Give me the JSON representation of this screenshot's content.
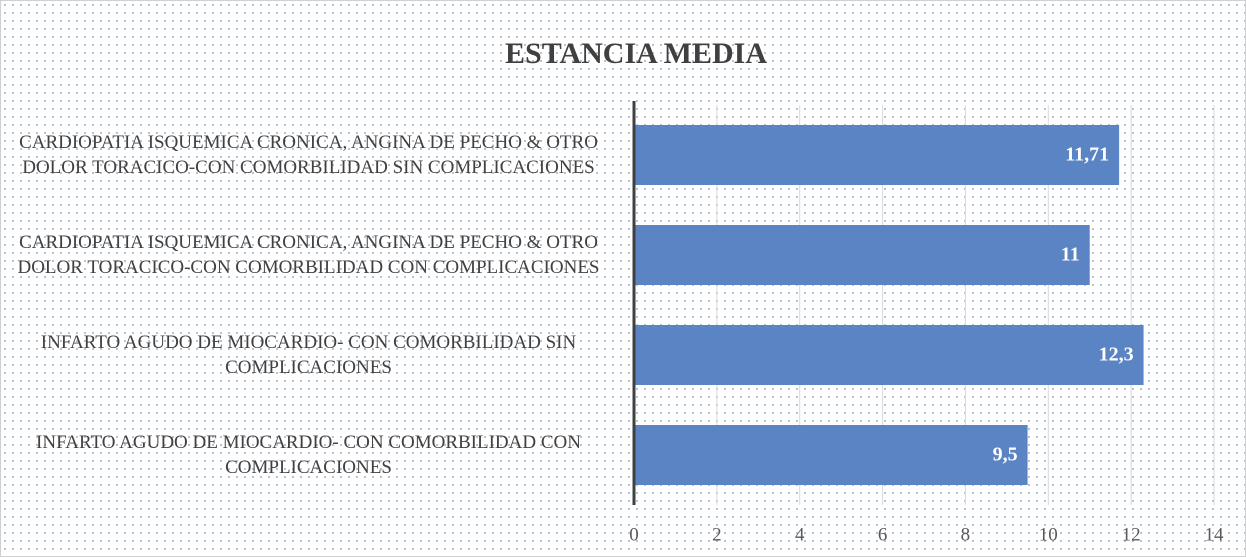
{
  "chart_data": {
    "type": "bar",
    "orientation": "horizontal",
    "title": "ESTANCIA MEDIA",
    "categories": [
      "CARDIOPATIA ISQUEMICA CRONICA, ANGINA DE PECHO & OTRO DOLOR TORACICO-CON COMORBILIDAD SIN COMPLICACIONES",
      "CARDIOPATIA ISQUEMICA CRONICA, ANGINA DE PECHO & OTRO DOLOR TORACICO-CON COMORBILIDAD CON COMPLICACIONES",
      "INFARTO AGUDO DE MIOCARDIO- CON COMORBILIDAD SIN COMPLICACIONES",
      "INFARTO AGUDO DE MIOCARDIO- CON COMORBILIDAD CON COMPLICACIONES"
    ],
    "values": [
      11.71,
      11,
      12.3,
      9.5
    ],
    "value_labels": [
      "11,71",
      "11",
      "12,3",
      "9,5"
    ],
    "color": "#5b84c4",
    "xlim": [
      0,
      14
    ],
    "xticks": [
      0,
      2,
      4,
      6,
      8,
      10,
      12,
      14
    ],
    "grid": true
  }
}
